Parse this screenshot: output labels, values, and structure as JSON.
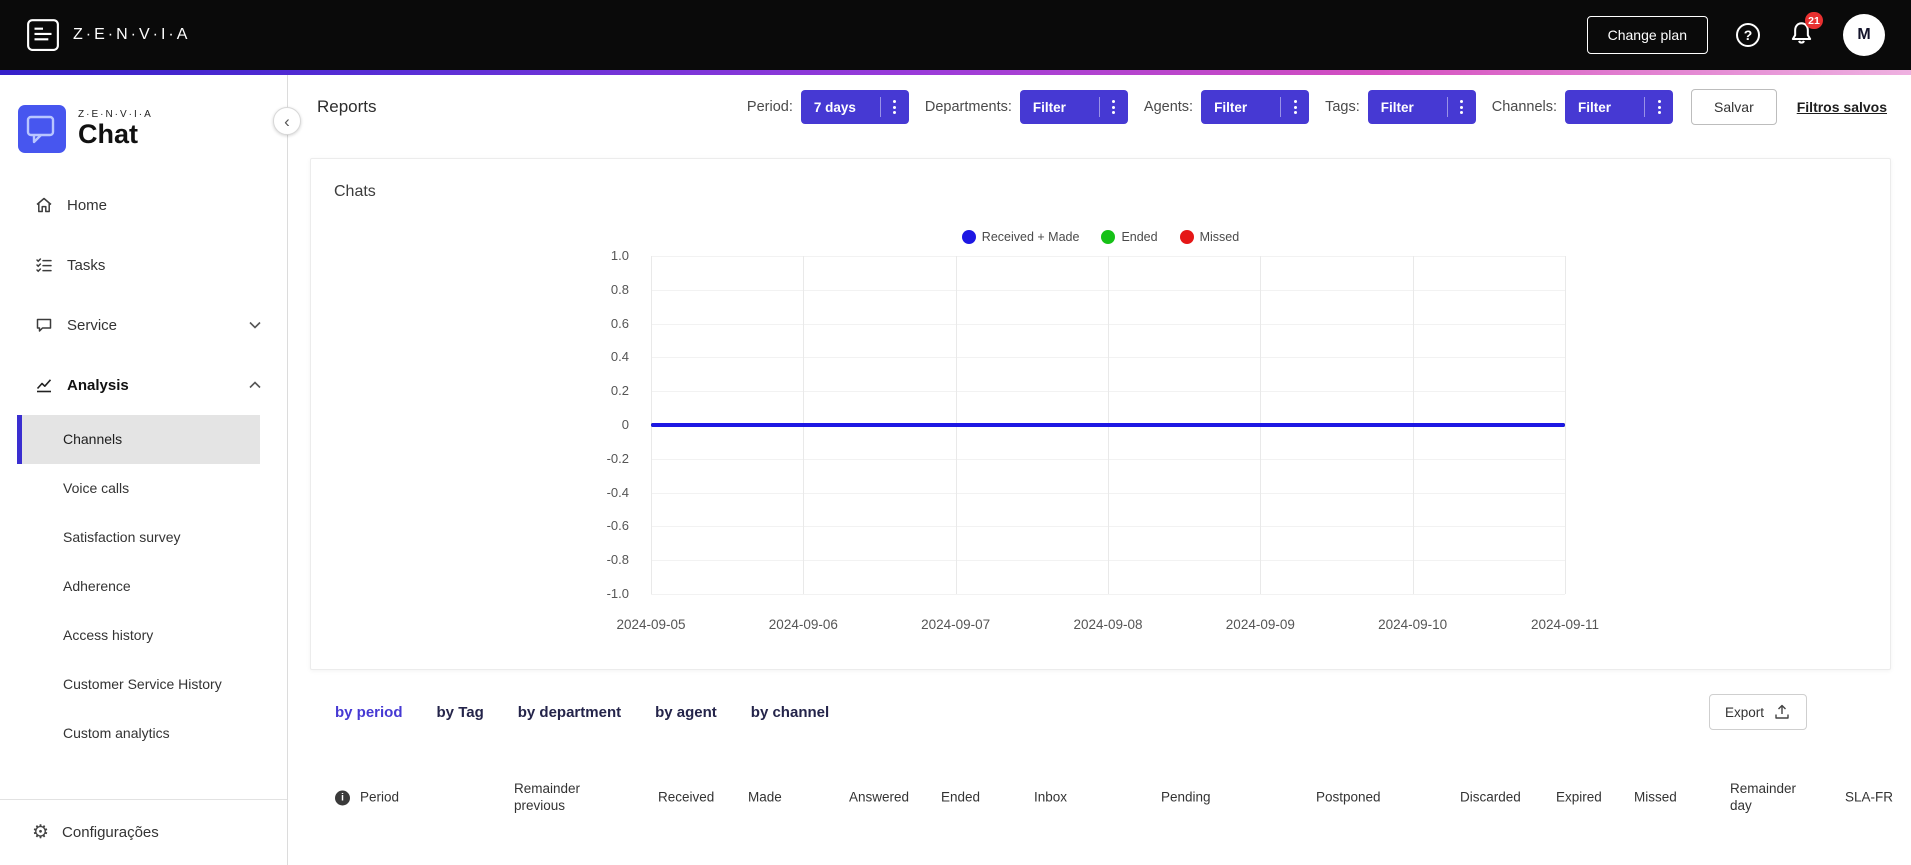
{
  "topbar": {
    "brand": "Z·E·N·V·I·A",
    "change_plan_label": "Change plan",
    "notification_count": "21",
    "avatar_initial": "M"
  },
  "sidebar": {
    "logo_brand": "Z·E·N·V·I·A",
    "logo_product": "Chat",
    "items": [
      {
        "label": "Home"
      },
      {
        "label": "Tasks"
      },
      {
        "label": "Service",
        "chevron": "down"
      },
      {
        "label": "Analysis",
        "chevron": "up",
        "expanded": true
      }
    ],
    "analysis_items": [
      {
        "label": "Channels",
        "selected": true
      },
      {
        "label": "Voice calls"
      },
      {
        "label": "Satisfaction survey"
      },
      {
        "label": "Adherence"
      },
      {
        "label": "Access history"
      },
      {
        "label": "Customer Service History"
      },
      {
        "label": "Custom analytics"
      }
    ],
    "footer_label": "Configurações"
  },
  "header": {
    "title": "Reports",
    "filters": [
      {
        "label": "Period:",
        "value": "7 days"
      },
      {
        "label": "Departments:",
        "value": "Filter"
      },
      {
        "label": "Agents:",
        "value": "Filter"
      },
      {
        "label": "Tags:",
        "value": "Filter"
      },
      {
        "label": "Channels:",
        "value": "Filter"
      }
    ],
    "save_label": "Salvar",
    "saved_filters_label": "Filtros salvos"
  },
  "chart_data": {
    "type": "line",
    "title": "Chats",
    "x": [
      "2024-09-05",
      "2024-09-06",
      "2024-09-07",
      "2024-09-08",
      "2024-09-09",
      "2024-09-10",
      "2024-09-11"
    ],
    "series": [
      {
        "name": "Received + Made",
        "color": "#1d17e3",
        "values": [
          0,
          0,
          0,
          0,
          0,
          0,
          0
        ]
      },
      {
        "name": "Ended",
        "color": "#16c117",
        "values": [
          0,
          0,
          0,
          0,
          0,
          0,
          0
        ]
      },
      {
        "name": "Missed",
        "color": "#e51717",
        "values": [
          0,
          0,
          0,
          0,
          0,
          0,
          0
        ]
      }
    ],
    "ylim": [
      -1.0,
      1.0
    ],
    "ytick_labels": [
      "1.0",
      "0.8",
      "0.6",
      "0.4",
      "0.2",
      "0",
      "-0.2",
      "-0.4",
      "-0.6",
      "-0.8",
      "-1.0"
    ],
    "xlabel": "",
    "ylabel": "",
    "grid": true,
    "legend_position": "top-center"
  },
  "table_section": {
    "tabs": [
      {
        "label": "by period",
        "active": true
      },
      {
        "label": "by Tag"
      },
      {
        "label": "by department"
      },
      {
        "label": "by agent"
      },
      {
        "label": "by channel"
      }
    ],
    "export_label": "Export",
    "columns": [
      "Period",
      "Remainder previous",
      "Received",
      "Made",
      "Answered",
      "Ended",
      "Inbox",
      "Pending",
      "Postponed",
      "Discarded",
      "Expired",
      "Missed",
      "Remainder day",
      "SLA-FR"
    ]
  },
  "icons": {
    "gear": "⚙",
    "collapse_chevron": "‹",
    "help": "?",
    "info": "i"
  },
  "colors": {
    "accent": "#4639D3",
    "selected_indicator": "#3A2ED0",
    "line_blue": "#1d17e3",
    "legend_green": "#16c117",
    "legend_red": "#e51717",
    "topbar_bg": "#0a0a0a",
    "badge_red": "#e83030"
  }
}
